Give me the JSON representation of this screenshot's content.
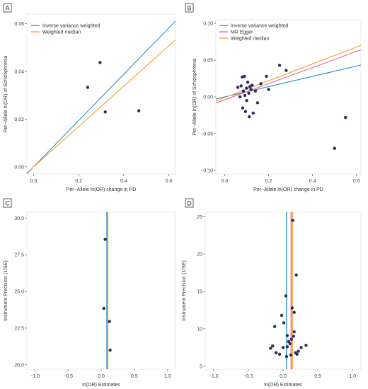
{
  "figure": {
    "background": "#ffffff",
    "point_color": "#2b2d5e",
    "frame_color": "#e6e6e6"
  },
  "colors": {
    "ivw": "#2a8fc4",
    "egger": "#e8609a",
    "wmedian": "#f0a02a"
  },
  "chart_data": [
    {
      "panel": "A",
      "type": "scatter",
      "xlabel": "Per−Allele ln(OR) change in PD",
      "ylabel": "Per−Allele ln(OR) of Schizophrenia",
      "xlim": [
        -0.03,
        0.63
      ],
      "ylim": [
        -0.003,
        0.064
      ],
      "xticks": [
        0.0,
        0.2,
        0.4,
        0.6
      ],
      "xtick_labels": [
        "0.0",
        "0.2",
        "0.4",
        "0.6"
      ],
      "yticks": [
        0.0,
        0.02,
        0.04,
        0.06
      ],
      "ytick_labels": [
        "0.00",
        "0.02",
        "0.04",
        "0.06"
      ],
      "points": [
        [
          0.24,
          0.0333
        ],
        [
          0.295,
          0.0437
        ],
        [
          0.318,
          0.023
        ],
        [
          0.467,
          0.0235
        ]
      ],
      "lines": [
        {
          "name": "Inverse variance weighted",
          "color_key": "ivw",
          "slope": 0.097,
          "intercept": 0.0
        },
        {
          "name": "Weighted median",
          "color_key": "wmedian",
          "slope": 0.0845,
          "intercept": 0.0
        }
      ],
      "legend": "top-left",
      "grid": false
    },
    {
      "panel": "B",
      "type": "scatter",
      "xlabel": "Per−Allele ln(OR) change in PD",
      "ylabel": "Per−Allele ln(OR) of Schizophrenia",
      "xlim": [
        -0.04,
        0.62
      ],
      "ylim": [
        -0.105,
        0.105
      ],
      "xticks": [
        0.0,
        0.2,
        0.4,
        0.6
      ],
      "xtick_labels": [
        "0.0",
        "0.2",
        "0.4",
        "0.6"
      ],
      "yticks": [
        -0.1,
        -0.05,
        0.0,
        0.05,
        0.1
      ],
      "ytick_labels": [
        "−0.10",
        "−0.05",
        "0.00",
        "0.05",
        "0.10"
      ],
      "points": [
        [
          0.06,
          0.013
        ],
        [
          0.07,
          0.0
        ],
        [
          0.075,
          0.015
        ],
        [
          0.08,
          0.027
        ],
        [
          0.082,
          -0.015
        ],
        [
          0.085,
          0.008
        ],
        [
          0.09,
          0.028
        ],
        [
          0.092,
          0.002
        ],
        [
          0.095,
          -0.02
        ],
        [
          0.1,
          0.012
        ],
        [
          0.1,
          -0.005
        ],
        [
          0.105,
          0.02
        ],
        [
          0.11,
          0.005
        ],
        [
          0.112,
          -0.027
        ],
        [
          0.115,
          0.014
        ],
        [
          0.12,
          0.01
        ],
        [
          0.125,
          0.016
        ],
        [
          0.13,
          -0.022
        ],
        [
          0.14,
          0.008
        ],
        [
          0.15,
          -0.008
        ],
        [
          0.165,
          0.018
        ],
        [
          0.19,
          0.028
        ],
        [
          0.2,
          0.01
        ],
        [
          0.25,
          0.043
        ],
        [
          0.28,
          0.036
        ],
        [
          0.5,
          -0.07
        ],
        [
          0.55,
          -0.028
        ]
      ],
      "lines": [
        {
          "name": "Inverse variance weighted",
          "color_key": "ivw",
          "slope": 0.07,
          "intercept": 0.0
        },
        {
          "name": "MR Egger",
          "color_key": "egger",
          "slope": 0.11,
          "intercept": -0.004
        },
        {
          "name": "Weighted median",
          "color_key": "wmedian",
          "slope": 0.115,
          "intercept": -0.001
        }
      ],
      "legend": "top-left",
      "grid": false
    },
    {
      "panel": "C",
      "type": "scatter",
      "xlabel": "ln(OR) Estimates",
      "ylabel": "Instrument Precision (1/SE)",
      "xlim": [
        -1.12,
        1.12
      ],
      "ylim": [
        19.7,
        30.4
      ],
      "xticks": [
        -1.0,
        -0.5,
        0.0,
        0.5,
        1.0
      ],
      "xtick_labels": [
        "−1.0",
        "−0.5",
        "0.0",
        "0.5",
        "1.0"
      ],
      "yticks": [
        20.0,
        22.5,
        25.0,
        27.5,
        30.0
      ],
      "ytick_labels": [
        "20.0",
        "22.5",
        "25.0",
        "27.5",
        "30.0"
      ],
      "points": [
        [
          0.06,
          28.55
        ],
        [
          0.04,
          23.85
        ],
        [
          0.125,
          22.95
        ],
        [
          0.135,
          21.0
        ]
      ],
      "vlines": [
        {
          "name": "Inverse variance weighted",
          "color_key": "ivw",
          "x": 0.085
        },
        {
          "name": "Weighted median",
          "color_key": "wmedian",
          "x": 0.1
        }
      ],
      "legend": "none",
      "grid": false
    },
    {
      "panel": "D",
      "type": "scatter",
      "xlabel": "ln(OR) Estimates",
      "ylabel": "Instrument Precision (1/SE)",
      "xlim": [
        -1.12,
        1.12
      ],
      "ylim": [
        4.6,
        25.6
      ],
      "xticks": [
        -1.0,
        -0.5,
        0.0,
        0.5,
        1.0
      ],
      "xtick_labels": [
        "−1.0",
        "−0.5",
        "0.0",
        "0.5",
        "1.0"
      ],
      "yticks": [
        5,
        10,
        15,
        20,
        25
      ],
      "ytick_labels": [
        "5",
        "10",
        "15",
        "20",
        "25"
      ],
      "points": [
        [
          0.14,
          24.5
        ],
        [
          0.19,
          17.2
        ],
        [
          0.04,
          14.4
        ],
        [
          0.13,
          12.8
        ],
        [
          0.16,
          12.2
        ],
        [
          -0.02,
          11.8
        ],
        [
          -0.12,
          10.3
        ],
        [
          0.01,
          10.8
        ],
        [
          0.16,
          9.6
        ],
        [
          0.15,
          9.0
        ],
        [
          0.06,
          9.1
        ],
        [
          0.08,
          8.3
        ],
        [
          0.12,
          8.6
        ],
        [
          -0.15,
          7.7
        ],
        [
          -0.18,
          7.4
        ],
        [
          0.0,
          7.5
        ],
        [
          0.06,
          7.6
        ],
        [
          0.1,
          8.0
        ],
        [
          0.26,
          7.5
        ],
        [
          0.33,
          7.8
        ],
        [
          -0.1,
          6.8
        ],
        [
          -0.05,
          6.6
        ],
        [
          0.05,
          6.3
        ],
        [
          0.11,
          6.5
        ],
        [
          0.18,
          6.8
        ],
        [
          0.22,
          7.0
        ],
        [
          0.2,
          6.6
        ]
      ],
      "vlines": [
        {
          "name": "Inverse variance weighted",
          "color_key": "ivw",
          "x": 0.05
        },
        {
          "name": "MR Egger",
          "color_key": "egger",
          "x": 0.115
        },
        {
          "name": "Weighted median",
          "color_key": "wmedian",
          "x": 0.135
        }
      ],
      "legend": "none",
      "grid": false
    }
  ]
}
